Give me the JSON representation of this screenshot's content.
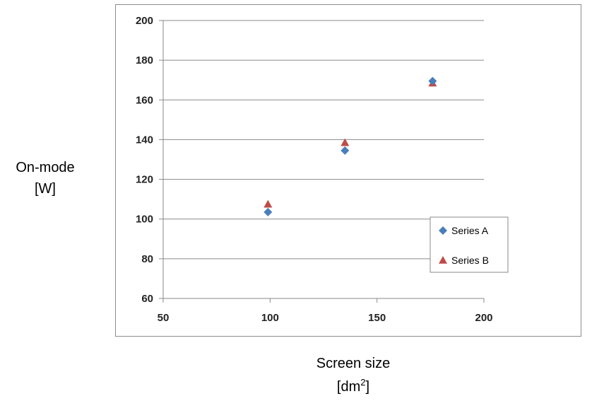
{
  "chart_data": {
    "type": "scatter",
    "title": "",
    "ylabel_line1": "On-mode",
    "ylabel_line2": "[W]",
    "xlabel_line1": "Screen size",
    "xlabel_line2_base": "[dm",
    "xlabel_line2_sup": "2",
    "xlabel_line2_end": "]",
    "xlim": [
      50,
      200
    ],
    "ylim": [
      60,
      200
    ],
    "xticks": [
      50,
      100,
      150,
      200
    ],
    "yticks": [
      60,
      80,
      100,
      120,
      140,
      160,
      180,
      200
    ],
    "grid": "horizontal",
    "legend_position": "lower-right",
    "series": [
      {
        "name": "Series A",
        "marker": "diamond",
        "color": "#4a7ebb",
        "x": [
          99,
          135,
          176
        ],
        "y": [
          103.5,
          134.5,
          169.5
        ]
      },
      {
        "name": "Series B",
        "marker": "triangle",
        "color": "#be4b48",
        "x": [
          99,
          135,
          176
        ],
        "y": [
          107.5,
          138.5,
          168.5
        ]
      }
    ]
  }
}
